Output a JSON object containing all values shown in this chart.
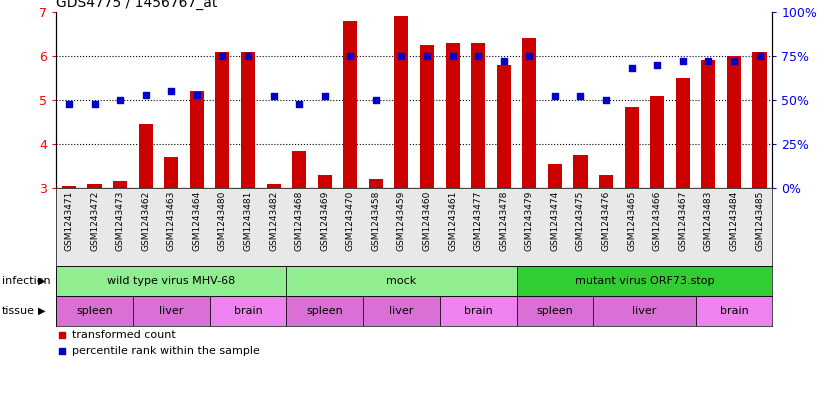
{
  "title": "GDS4775 / 1456767_at",
  "samples": [
    "GSM1243471",
    "GSM1243472",
    "GSM1243473",
    "GSM1243462",
    "GSM1243463",
    "GSM1243464",
    "GSM1243480",
    "GSM1243481",
    "GSM1243482",
    "GSM1243468",
    "GSM1243469",
    "GSM1243470",
    "GSM1243458",
    "GSM1243459",
    "GSM1243460",
    "GSM1243461",
    "GSM1243477",
    "GSM1243478",
    "GSM1243479",
    "GSM1243474",
    "GSM1243475",
    "GSM1243476",
    "GSM1243465",
    "GSM1243466",
    "GSM1243467",
    "GSM1243483",
    "GSM1243484",
    "GSM1243485"
  ],
  "bar_values": [
    3.05,
    3.1,
    3.15,
    4.45,
    3.7,
    5.2,
    6.1,
    6.1,
    3.1,
    3.85,
    3.3,
    6.8,
    3.2,
    6.9,
    6.25,
    6.3,
    6.3,
    5.8,
    6.4,
    3.55,
    3.75,
    3.3,
    4.85,
    5.1,
    5.5,
    5.9,
    6.0,
    6.1
  ],
  "percentile_values": [
    48,
    48,
    50,
    53,
    55,
    53,
    75,
    75,
    52,
    48,
    52,
    75,
    50,
    75,
    75,
    75,
    75,
    72,
    75,
    52,
    52,
    50,
    68,
    70,
    72,
    72,
    72,
    75
  ],
  "infection_groups": [
    {
      "label": "wild type virus MHV-68",
      "start": 0,
      "end": 9,
      "color": "#90EE90"
    },
    {
      "label": "mock",
      "start": 9,
      "end": 18,
      "color": "#90EE90"
    },
    {
      "label": "mutant virus ORF73.stop",
      "start": 18,
      "end": 28,
      "color": "#32CD32"
    }
  ],
  "tissue_groups": [
    {
      "label": "spleen",
      "start": 0,
      "end": 3,
      "color": "#DA70D6"
    },
    {
      "label": "liver",
      "start": 3,
      "end": 6,
      "color": "#DA70D6"
    },
    {
      "label": "brain",
      "start": 6,
      "end": 9,
      "color": "#EE82EE"
    },
    {
      "label": "spleen",
      "start": 9,
      "end": 12,
      "color": "#DA70D6"
    },
    {
      "label": "liver",
      "start": 12,
      "end": 15,
      "color": "#DA70D6"
    },
    {
      "label": "brain",
      "start": 15,
      "end": 18,
      "color": "#EE82EE"
    },
    {
      "label": "spleen",
      "start": 18,
      "end": 21,
      "color": "#DA70D6"
    },
    {
      "label": "liver",
      "start": 21,
      "end": 25,
      "color": "#DA70D6"
    },
    {
      "label": "brain",
      "start": 25,
      "end": 28,
      "color": "#EE82EE"
    }
  ],
  "ylim_left": [
    3,
    7
  ],
  "ylim_right": [
    0,
    100
  ],
  "yticks_left": [
    3,
    4,
    5,
    6,
    7
  ],
  "yticks_right": [
    0,
    25,
    50,
    75,
    100
  ],
  "ytick_labels_right": [
    "0%",
    "25%",
    "50%",
    "75%",
    "100%"
  ],
  "bar_color": "#CC0000",
  "dot_color": "#0000CC",
  "bar_bottom": 3.0,
  "grid_yticks": [
    4,
    5,
    6
  ],
  "xtick_bg": "#E8E8E8"
}
